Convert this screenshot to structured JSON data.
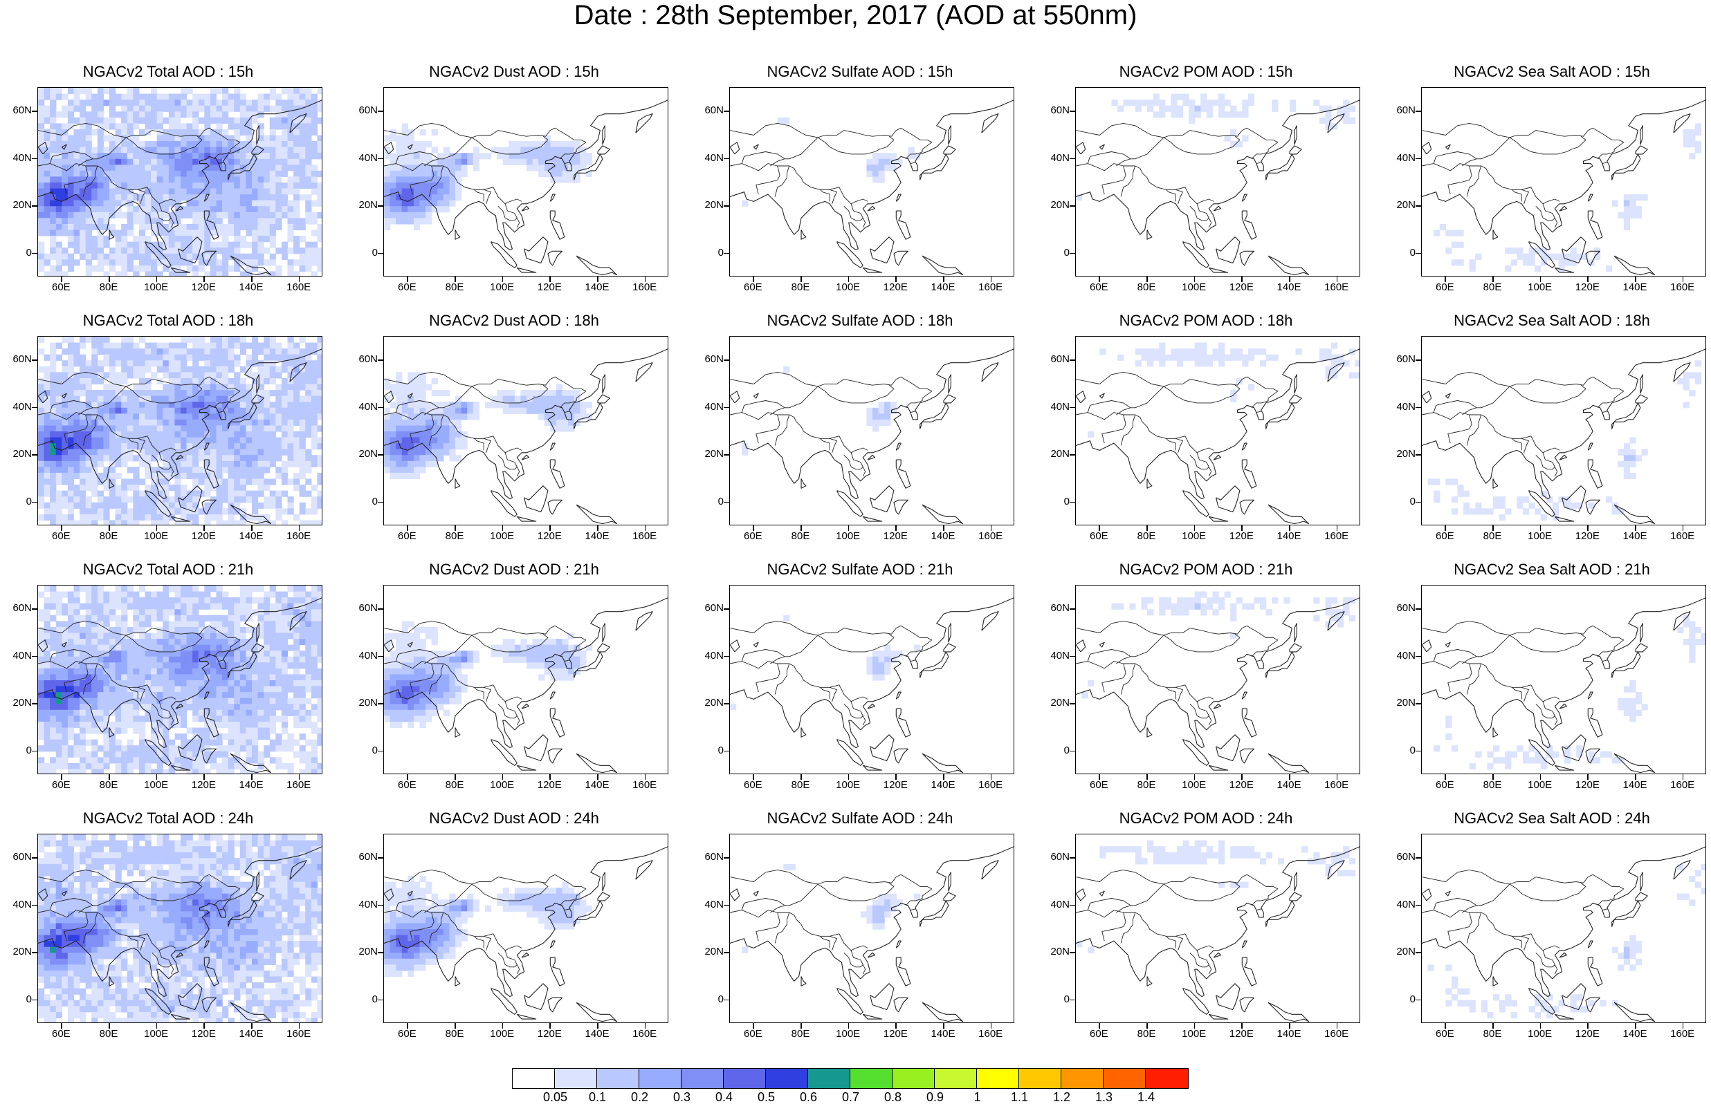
{
  "title": "Date : 28th September, 2017 (AOD at 550nm)",
  "lat_labels": [
    "60N",
    "40N",
    "20N",
    "0"
  ],
  "lat_values": [
    60,
    40,
    20,
    0
  ],
  "lon_labels": [
    "60E",
    "80E",
    "100E",
    "120E",
    "140E",
    "160E"
  ],
  "lon_values": [
    60,
    80,
    100,
    120,
    140,
    160
  ],
  "map_extent": {
    "lon_min": 50,
    "lon_max": 170,
    "lat_min": -10,
    "lat_max": 70
  },
  "panels": [
    {
      "title": "NGACv2 Total AOD : 15h",
      "field": "total",
      "hour": 15
    },
    {
      "title": "NGACv2 Dust AOD : 15h",
      "field": "dust",
      "hour": 15
    },
    {
      "title": "NGACv2 Sulfate AOD : 15h",
      "field": "sulfate",
      "hour": 15
    },
    {
      "title": "NGACv2 POM AOD : 15h",
      "field": "pom",
      "hour": 15
    },
    {
      "title": "NGACv2 Sea Salt AOD : 15h",
      "field": "seasalt",
      "hour": 15
    },
    {
      "title": "NGACv2 Total AOD : 18h",
      "field": "total",
      "hour": 18
    },
    {
      "title": "NGACv2 Dust AOD : 18h",
      "field": "dust",
      "hour": 18
    },
    {
      "title": "NGACv2 Sulfate AOD : 18h",
      "field": "sulfate",
      "hour": 18
    },
    {
      "title": "NGACv2 POM AOD : 18h",
      "field": "pom",
      "hour": 18
    },
    {
      "title": "NGACv2 Sea Salt AOD : 18h",
      "field": "seasalt",
      "hour": 18
    },
    {
      "title": "NGACv2 Total AOD : 21h",
      "field": "total",
      "hour": 21
    },
    {
      "title": "NGACv2 Dust AOD : 21h",
      "field": "dust",
      "hour": 21
    },
    {
      "title": "NGACv2 Sulfate AOD : 21h",
      "field": "sulfate",
      "hour": 21
    },
    {
      "title": "NGACv2 POM AOD : 21h",
      "field": "pom",
      "hour": 21
    },
    {
      "title": "NGACv2 Sea Salt AOD : 21h",
      "field": "seasalt",
      "hour": 21
    },
    {
      "title": "NGACv2 Total AOD : 24h",
      "field": "total",
      "hour": 24
    },
    {
      "title": "NGACv2 Dust AOD : 24h",
      "field": "dust",
      "hour": 24
    },
    {
      "title": "NGACv2 Sulfate AOD : 24h",
      "field": "sulfate",
      "hour": 24
    },
    {
      "title": "NGACv2 POM AOD : 24h",
      "field": "pom",
      "hour": 24
    },
    {
      "title": "NGACv2 Sea Salt  AOD : 24h",
      "field": "seasalt",
      "hour": 24
    }
  ],
  "colorbar": {
    "labels": [
      "0.05",
      "0.1",
      "0.2",
      "0.3",
      "0.4",
      "0.5",
      "0.6",
      "0.7",
      "0.8",
      "0.9",
      "1",
      "1.1",
      "1.2",
      "1.3",
      "1.4"
    ],
    "colors": [
      "#ffffff",
      "#dce3ff",
      "#b9c8ff",
      "#98acff",
      "#7f8ff5",
      "#5f66ea",
      "#2f3fe0",
      "#159890",
      "#55e030",
      "#99f020",
      "#c8f830",
      "#ffff00",
      "#ffc800",
      "#ff9600",
      "#ff6400",
      "#ff1e00"
    ]
  }
}
